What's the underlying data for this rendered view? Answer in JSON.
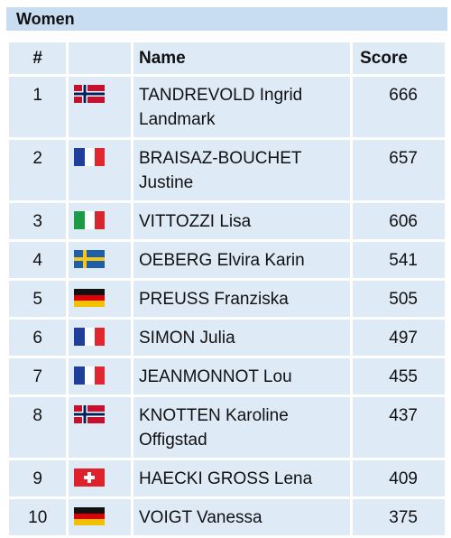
{
  "header": {
    "title": "Women"
  },
  "table": {
    "columns": [
      "#",
      "Name",
      "Score"
    ],
    "rows": [
      [
        1,
        "TANDREVOLD Ingrid Landmark",
        666
      ],
      [
        2,
        "BRAISAZ-BOUCHET Justine",
        657
      ],
      [
        3,
        "VITTOZZI Lisa",
        606
      ],
      [
        4,
        "OEBERG Elvira Karin",
        541
      ],
      [
        5,
        "PREUSS Franziska",
        505
      ],
      [
        6,
        "SIMON Julia",
        497
      ],
      [
        7,
        "JEANMONNOT Lou",
        455
      ],
      [
        8,
        "KNOTTEN Karoline Offigstad",
        437
      ],
      [
        9,
        "HAECKI GROSS Lena",
        409
      ],
      [
        10,
        "VOIGT Vanessa",
        375
      ]
    ]
  }
}
